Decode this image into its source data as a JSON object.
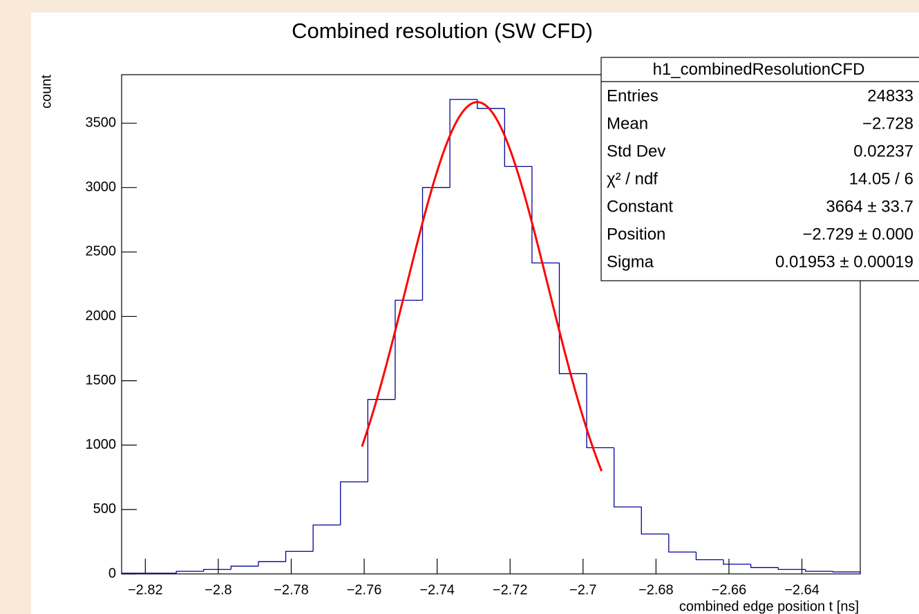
{
  "chart_data": {
    "type": "histogram",
    "title": "Combined resolution (SW CFD)",
    "x_label": "combined edge position t [ns]",
    "y_label": "count",
    "bins": [
      -2.8265,
      -2.819,
      -2.8115,
      -2.804,
      -2.7965,
      -2.789,
      -2.7815,
      -2.774,
      -2.7665,
      -2.759,
      -2.7515,
      -2.744,
      -2.7365,
      -2.729,
      -2.7215,
      -2.714,
      -2.7065,
      -2.699,
      -2.6915,
      -2.684,
      -2.6765,
      -2.669,
      -2.6615,
      -2.654,
      -2.6465,
      -2.639,
      -2.6315,
      -2.624
    ],
    "values": [
      5,
      5,
      20,
      35,
      60,
      95,
      175,
      380,
      715,
      1355,
      2125,
      3000,
      3685,
      3615,
      3165,
      2415,
      1555,
      980,
      520,
      310,
      170,
      110,
      75,
      50,
      35,
      20,
      15
    ],
    "color": "#000099",
    "fit": {
      "constant": 3664,
      "mean": -2.729,
      "sigma": 0.01953,
      "xrange": [
        -2.7606,
        -2.6949
      ],
      "color": "#ff0000"
    },
    "xlim": [
      -2.8265,
      -2.624
    ],
    "ylim": [
      0,
      3877
    ],
    "xticks": [
      {
        "value": -2.82,
        "label": "−2.82"
      },
      {
        "value": -2.8,
        "label": "−2.8"
      },
      {
        "value": -2.78,
        "label": "−2.78"
      },
      {
        "value": -2.76,
        "label": "−2.76"
      },
      {
        "value": -2.74,
        "label": "−2.74"
      },
      {
        "value": -2.72,
        "label": "−2.72"
      },
      {
        "value": -2.7,
        "label": "−2.7"
      },
      {
        "value": -2.68,
        "label": "−2.68"
      },
      {
        "value": -2.66,
        "label": "−2.66"
      },
      {
        "value": -2.64,
        "label": "−2.64"
      }
    ],
    "yticks": [
      0,
      500,
      1000,
      1500,
      2000,
      2500,
      3000,
      3500
    ],
    "stats": {
      "title": "h1_combinedResolutionCFD",
      "rows": [
        {
          "label": "Entries",
          "value": "24833"
        },
        {
          "label": "Mean",
          "value": "−2.728"
        },
        {
          "label": "Std Dev",
          "value": "0.02237"
        },
        {
          "label": "χ² / ndf",
          "value": "14.05 / 6"
        },
        {
          "label": "Constant",
          "value": "3664 ± 33.7"
        },
        {
          "label": "Position",
          "value": "−2.729 ± 0.000"
        },
        {
          "label": "Sigma",
          "value": "0.01953 ± 0.00019"
        }
      ]
    }
  }
}
